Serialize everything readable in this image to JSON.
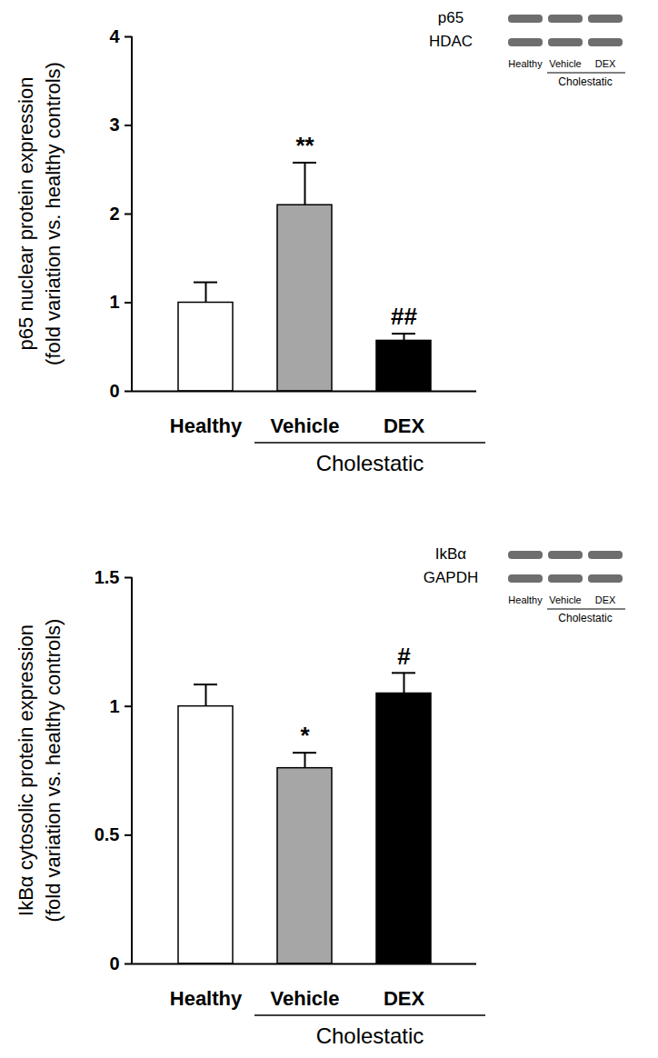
{
  "chart_data": [
    {
      "type": "bar",
      "y_label": [
        "p65 nuclear protein expression",
        "(fold variation vs. healthy controls)"
      ],
      "categories": [
        "Healthy",
        "Vehicle",
        "DEX"
      ],
      "values": [
        1.0,
        2.1,
        0.57
      ],
      "errors": [
        0.23,
        0.48,
        0.08
      ],
      "significance": [
        null,
        "**",
        "##"
      ],
      "colors": [
        "#ffffff",
        "#a6a6a6",
        "#000000"
      ],
      "ylim": [
        0,
        4
      ],
      "yticks": [
        0,
        1,
        2,
        3,
        4
      ],
      "group_label": {
        "text": "Cholestatic",
        "categories": [
          "Vehicle",
          "DEX"
        ]
      },
      "blot": {
        "rows": [
          "p65",
          "HDAC"
        ],
        "lanes": [
          "Healthy",
          "Vehicle",
          "DEX"
        ],
        "group": "Cholestatic"
      }
    },
    {
      "type": "bar",
      "y_label": [
        "IkBα cytosolic protein expression",
        "(fold variation vs. healthy controls)"
      ],
      "categories": [
        "Healthy",
        "Vehicle",
        "DEX"
      ],
      "values": [
        1.0,
        0.76,
        1.05
      ],
      "errors": [
        0.085,
        0.06,
        0.08
      ],
      "significance": [
        null,
        "*",
        "#"
      ],
      "colors": [
        "#ffffff",
        "#a6a6a6",
        "#000000"
      ],
      "ylim": [
        0,
        1.5
      ],
      "yticks": [
        0,
        0.5,
        1,
        1.5
      ],
      "group_label": {
        "text": "Cholestatic",
        "categories": [
          "Vehicle",
          "DEX"
        ]
      },
      "blot": {
        "rows": [
          "IkBα",
          "GAPDH"
        ],
        "lanes": [
          "Healthy",
          "Vehicle",
          "DEX"
        ],
        "group": "Cholestatic"
      }
    }
  ]
}
